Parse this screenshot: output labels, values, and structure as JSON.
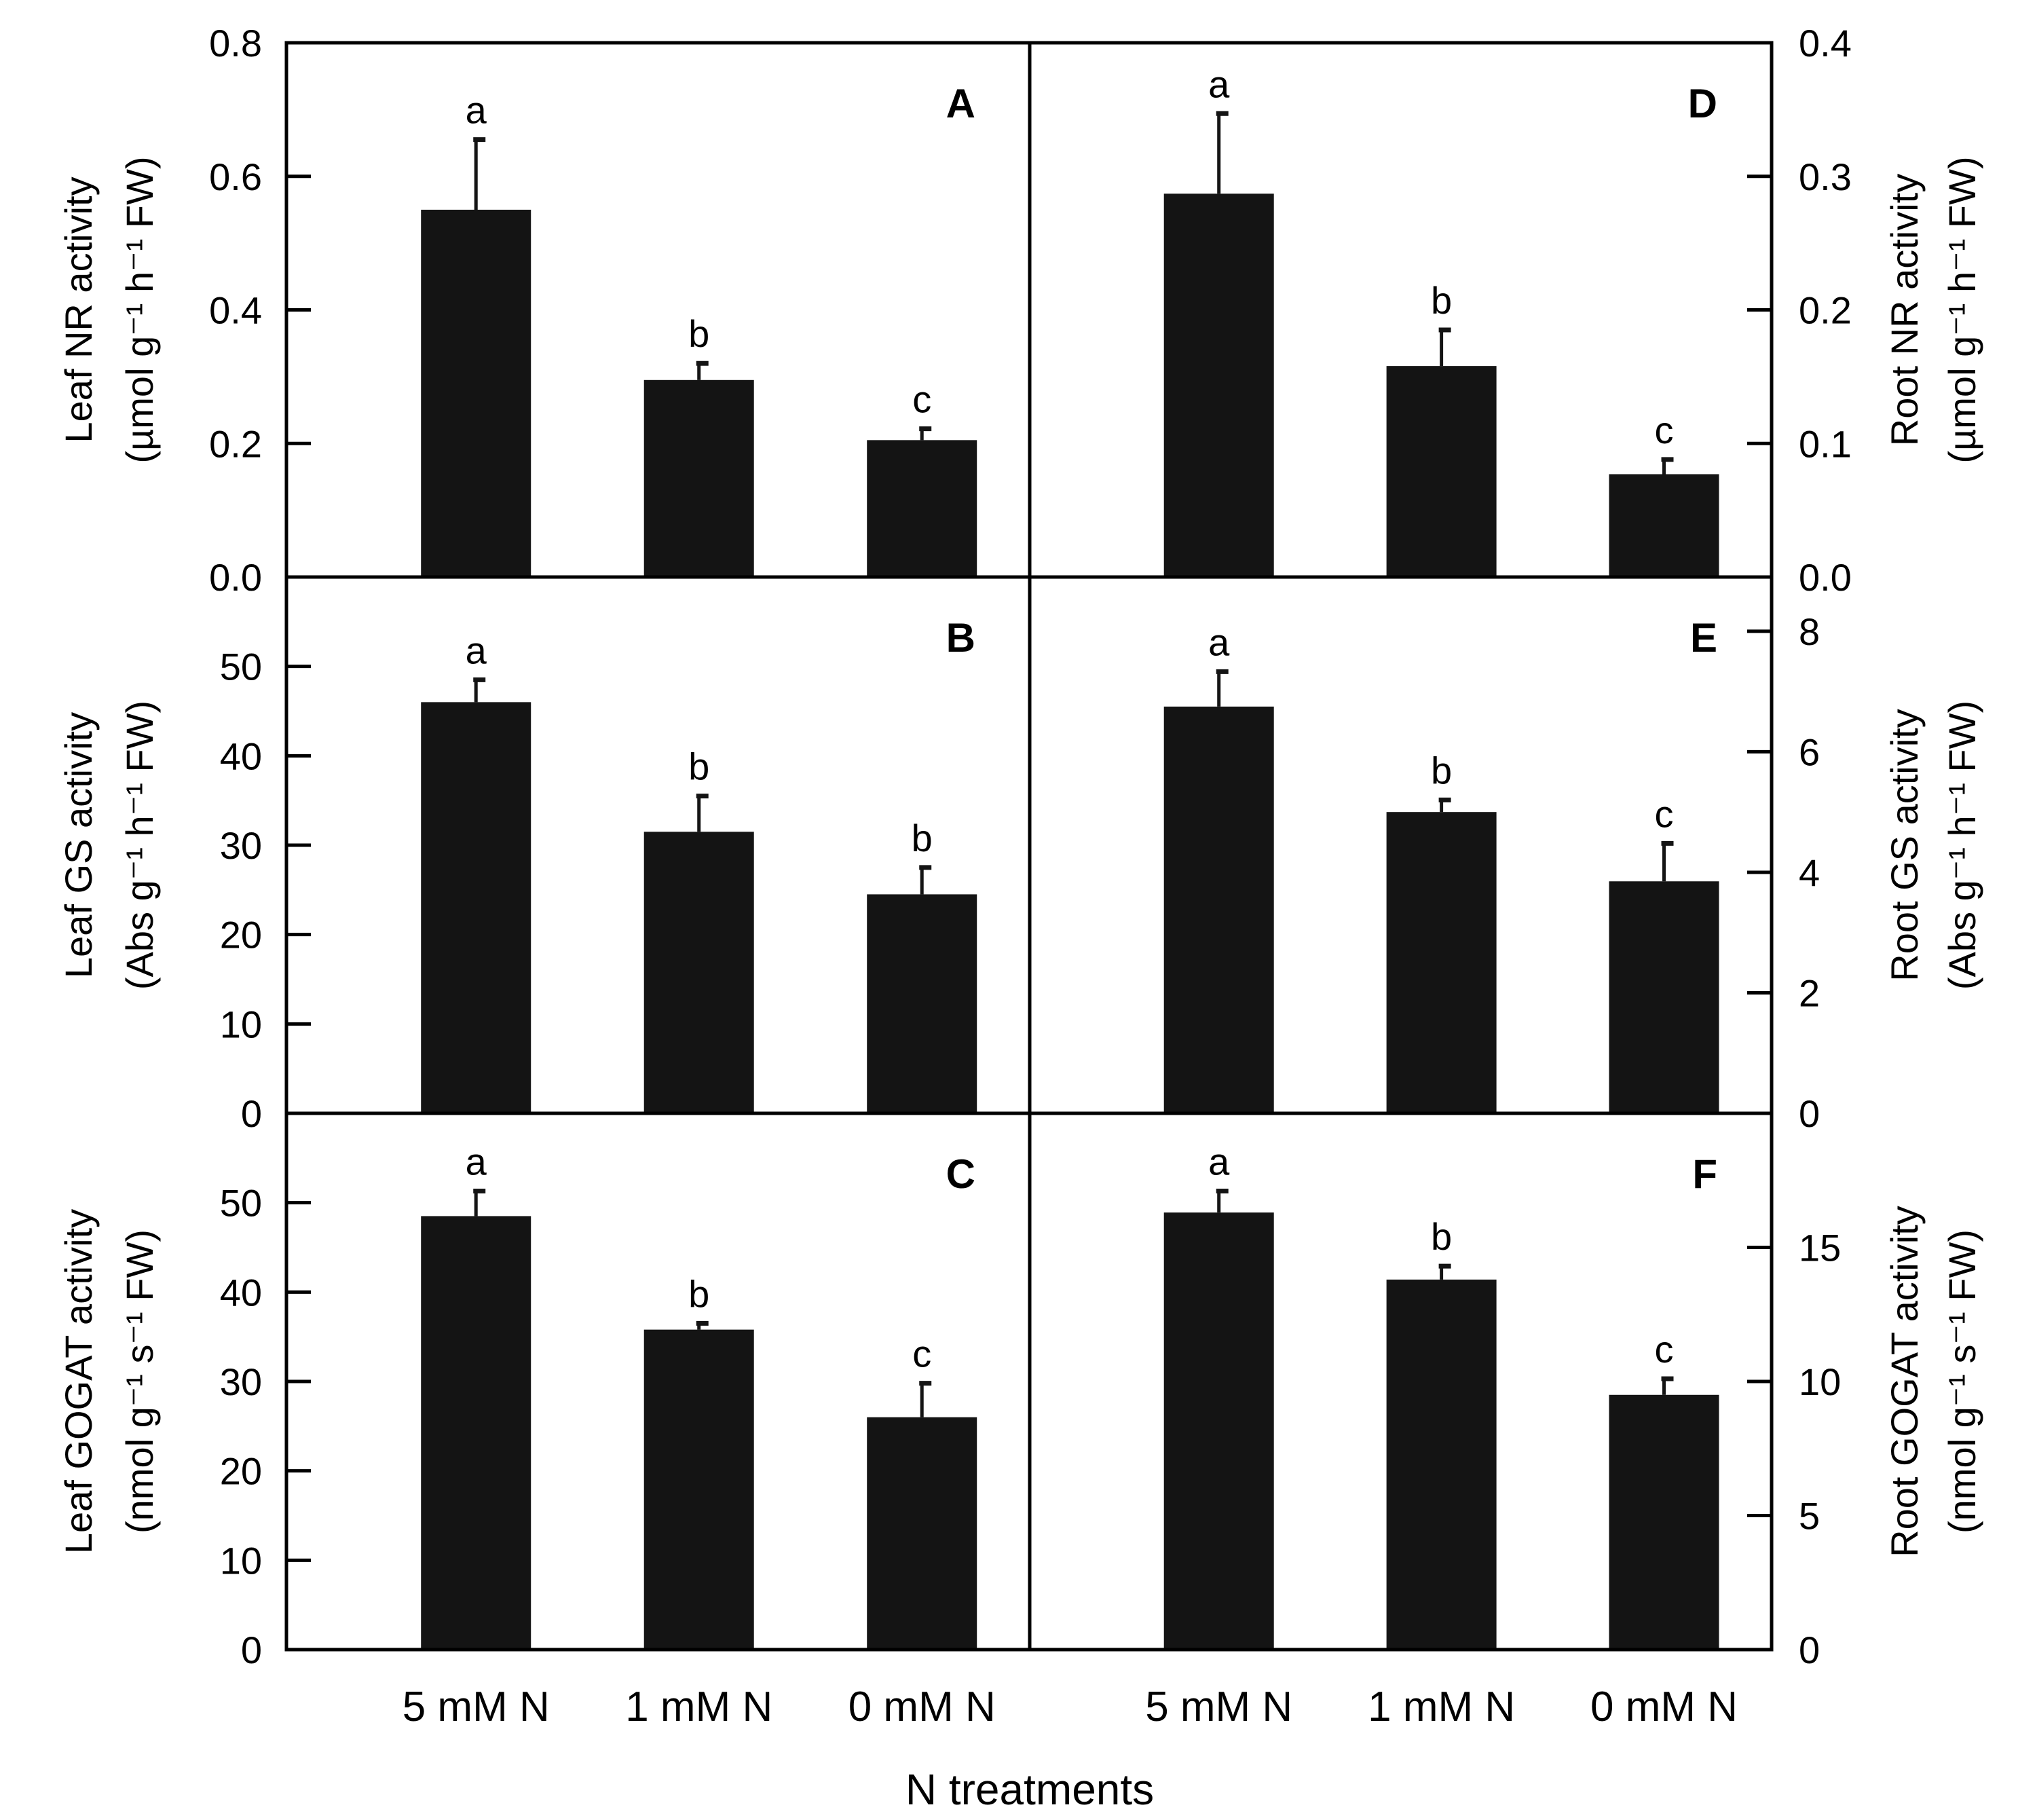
{
  "figure": {
    "x_title": "N treatments",
    "categories": [
      "5 mM N",
      "1 mM N",
      "0 mM N"
    ],
    "bar_color": "#141414"
  },
  "chart_data": [
    {
      "type": "bar",
      "panel": "A",
      "side": "left",
      "row": 0,
      "ylabel_line1": "Leaf NR activity",
      "ylabel_line2": "(µmol g⁻¹ h⁻¹ FW)",
      "ylim": [
        0,
        0.8
      ],
      "yticks": [
        0.0,
        0.2,
        0.4,
        0.6,
        0.8
      ],
      "tick_labels": [
        "0.0",
        "0.2",
        "0.4",
        "0.6",
        "0.8"
      ],
      "categories": [
        "5 mM N",
        "1 mM N",
        "0 mM N"
      ],
      "values": [
        0.55,
        0.295,
        0.205
      ],
      "errors": [
        0.105,
        0.025,
        0.017
      ],
      "letters": [
        "a",
        "b",
        "c"
      ]
    },
    {
      "type": "bar",
      "panel": "B",
      "side": "left",
      "row": 1,
      "ylabel_line1": "Leaf GS activity",
      "ylabel_line2": "(Abs g⁻¹ h⁻¹ FW)",
      "ylim": [
        0,
        60
      ],
      "yticks": [
        0,
        10,
        20,
        30,
        40,
        50
      ],
      "tick_labels": [
        "0",
        "10",
        "20",
        "30",
        "40",
        "50"
      ],
      "categories": [
        "5 mM N",
        "1 mM N",
        "0 mM N"
      ],
      "values": [
        46,
        31.5,
        24.5
      ],
      "errors": [
        2.5,
        4.0,
        3.0
      ],
      "letters": [
        "a",
        "b",
        "b"
      ]
    },
    {
      "type": "bar",
      "panel": "C",
      "side": "left",
      "row": 2,
      "ylabel_line1": "Leaf GOGAT activity",
      "ylabel_line2": "(nmol g⁻¹ s⁻¹ FW)",
      "ylim": [
        0,
        60
      ],
      "yticks": [
        0,
        10,
        20,
        30,
        40,
        50
      ],
      "tick_labels": [
        "0",
        "10",
        "20",
        "30",
        "40",
        "50"
      ],
      "categories": [
        "5 mM N",
        "1 mM N",
        "0 mM N"
      ],
      "values": [
        48.5,
        35.8,
        26
      ],
      "errors": [
        2.8,
        0.7,
        3.8
      ],
      "letters": [
        "a",
        "b",
        "c"
      ]
    },
    {
      "type": "bar",
      "panel": "D",
      "side": "right",
      "row": 0,
      "ylabel_line1": "Root NR activity",
      "ylabel_line2": "(µmol g⁻¹ h⁻¹ FW)",
      "ylim": [
        0,
        0.4
      ],
      "yticks": [
        0.0,
        0.1,
        0.2,
        0.3,
        0.4
      ],
      "tick_labels": [
        "0.0",
        "0.1",
        "0.2",
        "0.3",
        "0.4"
      ],
      "categories": [
        "5 mM N",
        "1 mM N",
        "0 mM N"
      ],
      "values": [
        0.287,
        0.158,
        0.077
      ],
      "errors": [
        0.06,
        0.027,
        0.011
      ],
      "letters": [
        "a",
        "b",
        "c"
      ]
    },
    {
      "type": "bar",
      "panel": "E",
      "side": "right",
      "row": 1,
      "ylabel_line1": "Root GS activity",
      "ylabel_line2": "(Abs g⁻¹ h⁻¹ FW)",
      "ylim": [
        0,
        8.9
      ],
      "yticks": [
        0,
        2,
        4,
        6,
        8
      ],
      "tick_labels": [
        "0",
        "2",
        "4",
        "6",
        "8"
      ],
      "categories": [
        "5 mM N",
        "1 mM N",
        "0 mM N"
      ],
      "values": [
        6.75,
        5.0,
        3.85
      ],
      "errors": [
        0.58,
        0.2,
        0.63
      ],
      "letters": [
        "a",
        "b",
        "c"
      ]
    },
    {
      "type": "bar",
      "panel": "F",
      "side": "right",
      "row": 2,
      "ylabel_line1": "Root GOGAT activity",
      "ylabel_line2": "(nmol g⁻¹ s⁻¹ FW)",
      "ylim": [
        0,
        20
      ],
      "yticks": [
        0,
        5,
        10,
        15
      ],
      "tick_labels": [
        "0",
        "5",
        "10",
        "15"
      ],
      "categories": [
        "5 mM N",
        "1 mM N",
        "0 mM N"
      ],
      "values": [
        16.3,
        13.8,
        9.5
      ],
      "errors": [
        0.8,
        0.5,
        0.6
      ],
      "letters": [
        "a",
        "b",
        "c"
      ]
    }
  ]
}
